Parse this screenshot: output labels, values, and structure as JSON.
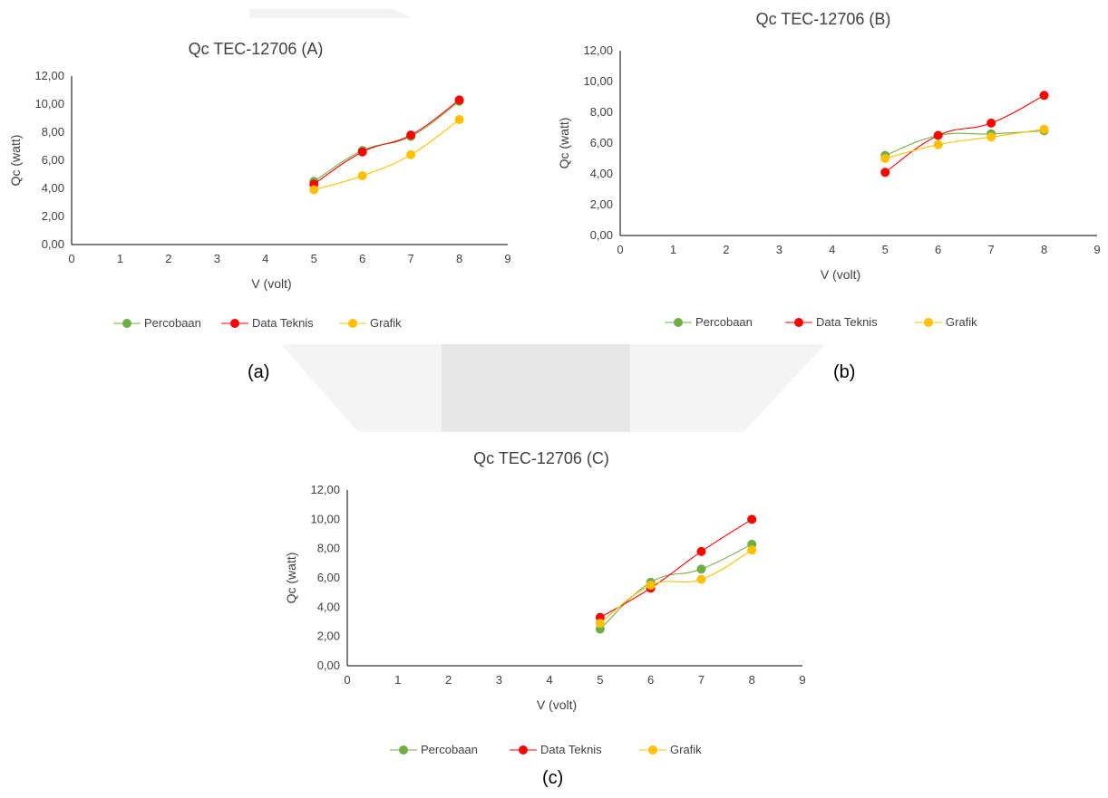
{
  "colors": {
    "percobaan": "#70ad47",
    "data_teknis": "#ff0000",
    "grafik": "#ffc000",
    "axis": "#000000",
    "text": "#404040",
    "watermark": "#e7e7e8"
  },
  "panels": [
    {
      "label": "(a)"
    },
    {
      "label": "(b)"
    },
    {
      "label": "(c)"
    }
  ],
  "chart_data": [
    {
      "type": "line",
      "title": "Qc TEC-12706 (A)",
      "xlabel": "V (volt)",
      "ylabel": "Qc (watt)",
      "xlim": [
        0,
        9
      ],
      "ylim": [
        0,
        12
      ],
      "xticks": [
        "0",
        "1",
        "2",
        "3",
        "4",
        "5",
        "6",
        "7",
        "8",
        "9"
      ],
      "yticks": [
        "0,00",
        "2,00",
        "4,00",
        "6,00",
        "8,00",
        "10,00",
        "12,00"
      ],
      "grid": false,
      "legend": "bottom",
      "x": [
        5,
        6,
        7,
        8
      ],
      "series": [
        {
          "name": "Percobaan",
          "color": "#70ad47",
          "values": [
            4.5,
            6.7,
            7.7,
            10.2
          ]
        },
        {
          "name": "Data Teknis",
          "color": "#ff0000",
          "values": [
            4.3,
            6.6,
            7.8,
            10.3
          ]
        },
        {
          "name": "Grafik",
          "color": "#ffc000",
          "values": [
            3.9,
            4.9,
            6.4,
            8.9
          ]
        }
      ]
    },
    {
      "type": "line",
      "title": "Qc TEC-12706 (B)",
      "xlabel": "V (volt)",
      "ylabel": "Qc (watt)",
      "xlim": [
        0,
        9
      ],
      "ylim": [
        0,
        12
      ],
      "xticks": [
        "0",
        "1",
        "2",
        "3",
        "4",
        "5",
        "6",
        "7",
        "8",
        "9"
      ],
      "yticks": [
        "0,00",
        "2,00",
        "4,00",
        "6,00",
        "8,00",
        "10,00",
        "12,00"
      ],
      "grid": false,
      "legend": "bottom",
      "x": [
        5,
        6,
        7,
        8
      ],
      "series": [
        {
          "name": "Percobaan",
          "color": "#70ad47",
          "values": [
            5.2,
            6.5,
            6.6,
            6.8
          ]
        },
        {
          "name": "Data Teknis",
          "color": "#ff0000",
          "values": [
            4.1,
            6.5,
            7.3,
            9.1
          ]
        },
        {
          "name": "Grafik",
          "color": "#ffc000",
          "values": [
            5.0,
            5.9,
            6.4,
            6.9
          ]
        }
      ]
    },
    {
      "type": "line",
      "title": "Qc TEC-12706 (C)",
      "xlabel": "V (volt)",
      "ylabel": "Qc (watt)",
      "xlim": [
        0,
        9
      ],
      "ylim": [
        0,
        12
      ],
      "xticks": [
        "0",
        "1",
        "2",
        "3",
        "4",
        "5",
        "6",
        "7",
        "8",
        "9"
      ],
      "yticks": [
        "0,00",
        "2,00",
        "4,00",
        "6,00",
        "8,00",
        "10,00",
        "12,00"
      ],
      "grid": false,
      "legend": "bottom",
      "x": [
        5,
        6,
        7,
        8
      ],
      "series": [
        {
          "name": "Percobaan",
          "color": "#70ad47",
          "values": [
            2.5,
            5.7,
            6.6,
            8.3
          ]
        },
        {
          "name": "Data Teknis",
          "color": "#ff0000",
          "values": [
            3.3,
            5.3,
            7.8,
            10.0
          ]
        },
        {
          "name": "Grafik",
          "color": "#ffc000",
          "values": [
            2.9,
            5.5,
            5.9,
            7.9
          ]
        }
      ]
    }
  ]
}
